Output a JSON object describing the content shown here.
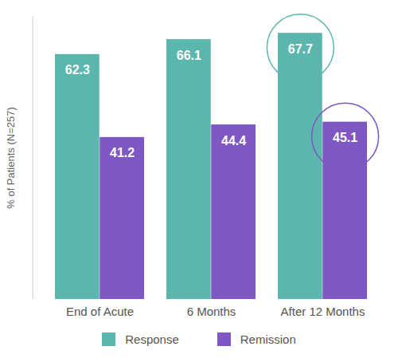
{
  "chart_data": {
    "type": "bar",
    "categories": [
      "End of Acute",
      "6 Months",
      "After 12 Months"
    ],
    "series": [
      {
        "name": "Response",
        "color": "#5bb6ae",
        "values": [
          62.3,
          66.1,
          67.7
        ]
      },
      {
        "name": "Remission",
        "color": "#7e57c2",
        "values": [
          41.2,
          44.4,
          45.1
        ]
      }
    ],
    "y_label": "% of Patients (N=257)",
    "ylim": [
      0,
      72
    ],
    "yticks": [],
    "grid": false,
    "data_labels": true,
    "tick_labels": "x",
    "legend": "bottom"
  }
}
